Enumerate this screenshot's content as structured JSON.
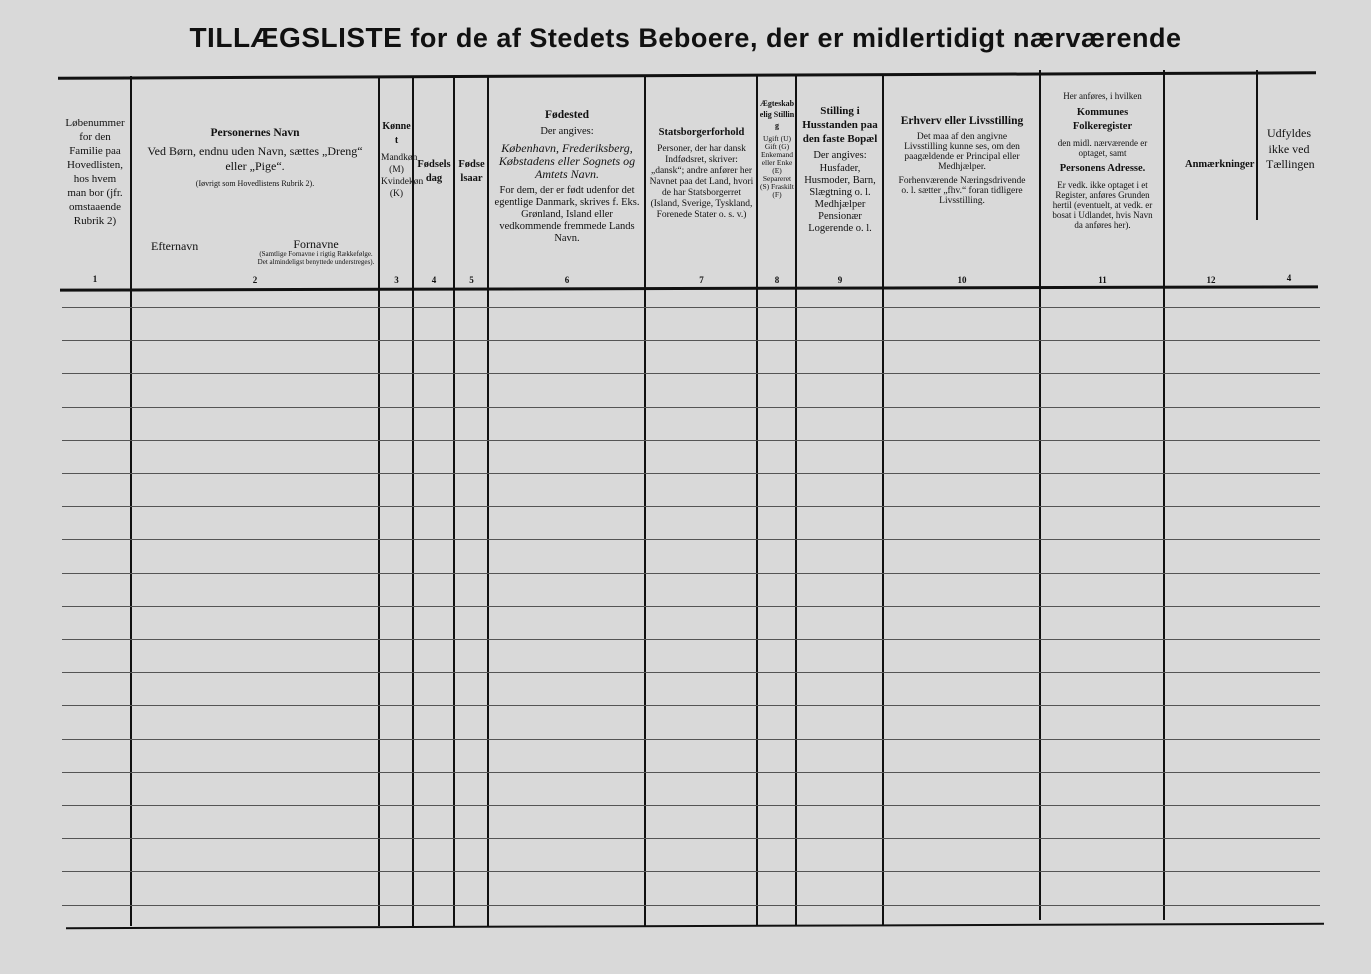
{
  "title": {
    "main": "TILLÆGSLISTE",
    "rest": "for de af Stedets Beboere, der er midlertidigt nærværende"
  },
  "columns": [
    {
      "heading": "",
      "text": "Løbenummer for den Familie paa Hovedlisten, hos hvem man bor (jfr. omstaaende Rubrik 2)",
      "number": "1"
    },
    {
      "heading": "Personernes Navn",
      "text": "Ved Børn, endnu uden Navn, sættes „Dreng“ eller „Pige“.",
      "note": "(Iøvrigt som Hovedlistens Rubrik 2).",
      "sub_left": "Efternavn",
      "sub_right": "Fornavne",
      "sub_right_note": "(Samtlige Fornavne i rigtig Rækkefølge. Det almindeligst benyttede understreges).",
      "number": "2"
    },
    {
      "heading": "Kønnet",
      "text": "Mandkøn (M) Kvindekøn (K)",
      "number": "3"
    },
    {
      "heading": "Fødselsdag",
      "text": "",
      "number": "4"
    },
    {
      "heading": "Fødselsaar",
      "text": "",
      "number": "5"
    },
    {
      "heading": "Fødested",
      "text": "Der angives:",
      "text2": "København, Frederiksberg, Købstadens eller Sognets og Amtets Navn.",
      "text3": "For dem, der er født udenfor det egentlige Danmark, skrives f. Eks. Grønland, Island eller vedkommende fremmede Lands Navn.",
      "number": "6"
    },
    {
      "heading": "Statsborgerforhold",
      "text": "Personer, der har dansk Indfødsret, skriver: „dansk“; andre anfører her Navnet paa det Land, hvori de har Statsborgerret (Island, Sverige, Tyskland, Forenede Stater o. s. v.)",
      "number": "7"
    },
    {
      "heading": "Ægteskabelig Stilling",
      "text": "Ugift (U) Gift (G) Enkemand eller Enke (E) Separeret (S) Fraskilt (F)",
      "number": "8"
    },
    {
      "heading": "Stilling i Husstanden paa den faste Bopæl",
      "text": "Der angives:",
      "text2": "Husfader, Husmoder, Barn, Slægtning o. l. Medhjælper Pensionær Logerende o. l.",
      "number": "9"
    },
    {
      "heading": "Erhverv eller Livsstilling",
      "text": "Det maa af den angivne Livsstilling kunne ses, om den paagældende er Principal eller Medhjælper.",
      "text2": "Forhenværende Næringsdrivende o. l. sætter „fhv.“ foran tidligere Livsstilling.",
      "number": "10"
    },
    {
      "heading": "Kommunes Folkeregister",
      "pre": "Her anføres, i hvilken",
      "text": "den midl. nærværende er optaget, samt",
      "heading2": "Personens Adresse.",
      "text2": "Er vedk. ikke optaget i et Register, anføres Grunden hertil (eventuelt, at vedk. er bosat i Udlandet, hvis Navn da anføres her).",
      "number": "11"
    },
    {
      "heading": "Anmærkninger",
      "text": "",
      "number": "12"
    },
    {
      "heading": "",
      "text": "Udfyldes ikke ved Tællingen",
      "number": "4"
    }
  ],
  "colors": {
    "paper": "#d9d9d9",
    "ink": "#111111"
  }
}
